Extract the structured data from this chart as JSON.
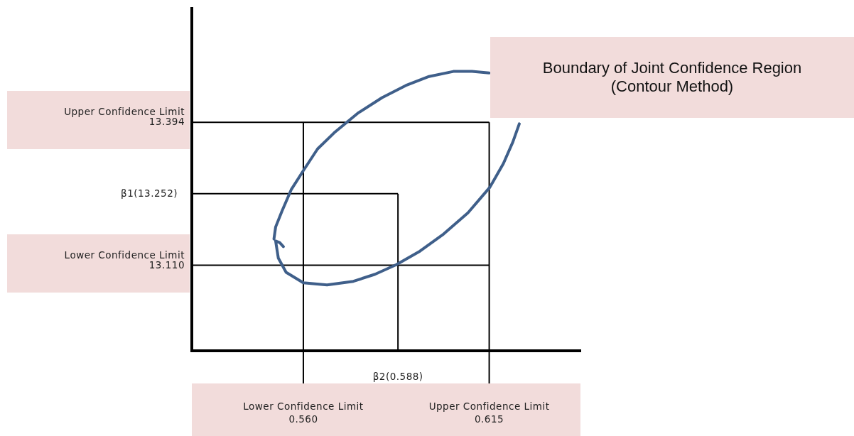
{
  "chart_data": {
    "type": "line",
    "annotations": [
      "Boundary of Joint Confidence Region\n(Contour Method)"
    ],
    "xlim": [
      0.527,
      0.642
    ],
    "ylim": [
      12.94,
      13.62
    ],
    "xticks": [
      {
        "value": 0.56,
        "label": "0.560"
      },
      {
        "value": 0.615,
        "label": "0.615"
      }
    ],
    "yticks": [
      {
        "value": 13.11,
        "label": "13.110"
      },
      {
        "value": 13.394,
        "label": "13.394"
      }
    ],
    "ref_lines": [
      {
        "axis": "x",
        "value": 0.56,
        "label": "Lower Confidence Limit",
        "color": "#000000"
      },
      {
        "axis": "x",
        "value": 0.588,
        "label": "β2(0.588)",
        "color": "#000000"
      },
      {
        "axis": "x",
        "value": 0.615,
        "label": "Upper Confidence Limit",
        "color": "#000000"
      },
      {
        "axis": "y",
        "value": 13.11,
        "label": "Lower Confidence Limit",
        "color": "#000000"
      },
      {
        "axis": "y",
        "value": 13.252,
        "label": "β1(13.252)",
        "color": "#000000"
      },
      {
        "axis": "y",
        "value": 13.394,
        "label": "Upper Confidence Limit",
        "color": "#000000"
      }
    ],
    "series": [
      {
        "color": "#3f5f8a",
        "x": [
          0.5541,
          0.553,
          0.5518,
          0.5526,
          0.5549,
          0.56,
          0.567,
          0.5748,
          0.5812,
          0.5875,
          0.5945,
          0.6015,
          0.6087,
          0.6152,
          0.6192,
          0.622,
          0.6239,
          null,
          0.615,
          0.6099,
          0.6044,
          0.5972,
          0.5903,
          0.5833,
          0.5761,
          0.5691,
          0.5642,
          0.56,
          0.5564,
          0.5537,
          0.5518,
          0.5513
        ],
        "values": [
          13.147,
          13.155,
          13.158,
          13.124,
          13.096,
          13.075,
          13.071,
          13.078,
          13.092,
          13.111,
          13.138,
          13.172,
          13.214,
          13.265,
          13.312,
          13.355,
          13.391,
          null,
          13.492,
          13.495,
          13.495,
          13.485,
          13.467,
          13.443,
          13.412,
          13.373,
          13.341,
          13.298,
          13.26,
          13.218,
          13.186,
          13.162
        ]
      }
    ],
    "marker": "none",
    "line_style": "solid"
  }
}
